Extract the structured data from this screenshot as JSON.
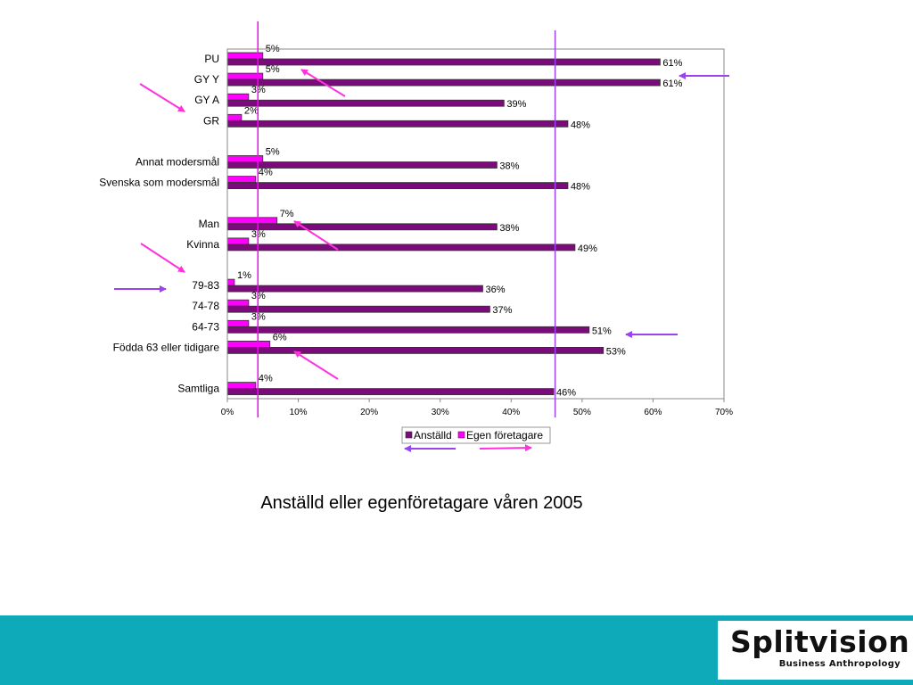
{
  "chart_data": {
    "type": "bar",
    "orientation": "horizontal",
    "categories": [
      "PU",
      "GY Y",
      "GY A",
      "GR",
      "",
      "Annat modersmål",
      "Svenska som modersmål",
      "",
      "Man",
      "Kvinna",
      "",
      "79-83",
      "74-78",
      "64-73",
      "Födda 63 eller tidigare",
      "",
      "Samtliga"
    ],
    "series": [
      {
        "name": "Anställd",
        "color": "#7b0a7b",
        "values": [
          61,
          61,
          39,
          48,
          null,
          38,
          48,
          null,
          38,
          49,
          null,
          36,
          37,
          51,
          53,
          null,
          46
        ]
      },
      {
        "name": "Egen företagare",
        "color": "#ff00ff",
        "values": [
          5,
          5,
          3,
          2,
          null,
          5,
          4,
          null,
          7,
          3,
          null,
          1,
          3,
          3,
          6,
          null,
          4
        ]
      }
    ],
    "xlim": [
      0,
      70
    ],
    "x_ticks": [
      "0%",
      "10%",
      "20%",
      "30%",
      "40%",
      "50%",
      "60%",
      "70%"
    ],
    "value_suffix": "%",
    "grid": false,
    "legend": {
      "placement": "bottom-center"
    },
    "annotations": {
      "vertical_lines": [
        {
          "x": 4.3,
          "color": "#ff00ff"
        },
        {
          "x": 46.2,
          "color": "#9944ee"
        }
      ]
    }
  },
  "caption": "Anställd eller egenföretagare våren 2005",
  "logo": {
    "name": "Splitvision",
    "tagline": "Business Anthropology"
  },
  "colors": {
    "footer": "#0faab9",
    "arrow_magenta": "#ff33dd",
    "arrow_purple": "#9944ee"
  }
}
